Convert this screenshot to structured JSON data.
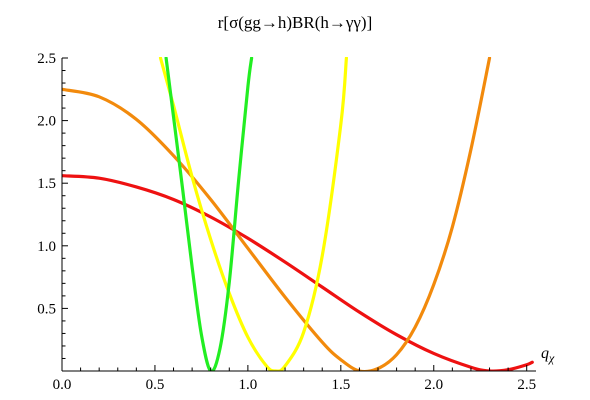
{
  "chart_data": {
    "type": "line",
    "title": "r[σ(gg→h)BR(h→γγ)]",
    "xlabel": "q",
    "xlabel_sub": "χ",
    "ylabel": "",
    "xlim": [
      0,
      2.55
    ],
    "ylim": [
      0,
      2.5
    ],
    "x_ticks": [
      0.0,
      0.5,
      1.0,
      1.5,
      2.0,
      2.5
    ],
    "x_tick_labels": [
      "0.0",
      "0.5",
      "1.0",
      "1.5",
      "2.0",
      "2.5"
    ],
    "y_ticks": [
      0.5,
      1.0,
      1.5,
      2.0,
      2.5
    ],
    "y_tick_labels": [
      "0.5",
      "1.0",
      "1.5",
      "2.0",
      "2.5"
    ],
    "grid": false,
    "legend": "none",
    "series": [
      {
        "color": "#ee1111",
        "x": [
          0.0,
          0.2,
          0.4,
          0.6,
          0.8,
          1.0,
          1.2,
          1.4,
          1.6,
          1.8,
          2.0,
          2.2,
          2.3,
          2.4,
          2.5,
          2.53
        ],
        "y": [
          1.56,
          1.54,
          1.47,
          1.37,
          1.23,
          1.06,
          0.87,
          0.67,
          0.47,
          0.29,
          0.14,
          0.03,
          0.0,
          0.01,
          0.05,
          0.07
        ]
      },
      {
        "color": "#f28a0c",
        "x": [
          0.0,
          0.2,
          0.4,
          0.6,
          0.8,
          1.0,
          1.2,
          1.4,
          1.5,
          1.6,
          1.7,
          1.8,
          1.9,
          2.0,
          2.1,
          2.2,
          2.3
        ],
        "y": [
          2.25,
          2.19,
          2.01,
          1.72,
          1.37,
          0.98,
          0.59,
          0.23,
          0.09,
          0.0,
          0.02,
          0.13,
          0.35,
          0.69,
          1.15,
          1.77,
          2.5
        ]
      },
      {
        "color": "#ffff00",
        "x": [
          0.53,
          0.6,
          0.7,
          0.8,
          0.9,
          1.0,
          1.1,
          1.15,
          1.2,
          1.3,
          1.4,
          1.5,
          1.53
        ],
        "y": [
          2.5,
          2.12,
          1.55,
          1.05,
          0.62,
          0.27,
          0.04,
          0.0,
          0.04,
          0.31,
          0.92,
          1.97,
          2.5
        ]
      },
      {
        "color": "#22ee22",
        "x": [
          0.56,
          0.6,
          0.65,
          0.7,
          0.75,
          0.8,
          0.85,
          0.9,
          0.95,
          1.0,
          1.02
        ],
        "y": [
          2.5,
          2.03,
          1.44,
          0.83,
          0.29,
          0.0,
          0.18,
          0.71,
          1.52,
          2.27,
          2.5
        ]
      }
    ]
  }
}
